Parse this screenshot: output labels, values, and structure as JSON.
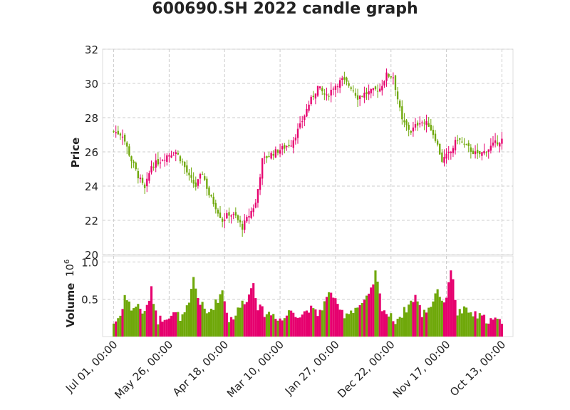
{
  "chart_data": {
    "type": "candlestick",
    "title": "600690.SH 2022 candle graph",
    "up_color": "#e6006e",
    "down_color": "#6fa80a",
    "price_panel": {
      "ylabel": "Price",
      "ylim": [
        20,
        32
      ],
      "yticks": [
        "20",
        "22",
        "24",
        "26",
        "28",
        "30",
        "32"
      ],
      "grid": true
    },
    "volume_panel": {
      "ylabel": "Volume",
      "ylim": [
        0,
        1.0
      ],
      "yticks": [
        "0.5",
        "1.0"
      ],
      "exponent_label": "10",
      "exponent_power": "6",
      "grid": true
    },
    "x_order": "descending",
    "x_tick_labels": [
      "Jul 01, 00:00",
      "May 26, 00:00",
      "Apr 18, 00:00",
      "Mar 10, 00:00",
      "Jan 27, 00:00",
      "Dec 22, 00:00",
      "Nov 17, 00:00",
      "Oct 13, 00:00"
    ],
    "x_tick_positions": [
      0,
      25,
      50,
      75,
      100,
      125,
      150,
      175
    ],
    "x_tick_rotation": 45,
    "price_close_anchors": [
      [
        0,
        27.2
      ],
      [
        4,
        27.0
      ],
      [
        8,
        25.5
      ],
      [
        11,
        24.6
      ],
      [
        14,
        23.8
      ],
      [
        17,
        25.2
      ],
      [
        20,
        25.4
      ],
      [
        24,
        25.8
      ],
      [
        28,
        26.0
      ],
      [
        31,
        25.4
      ],
      [
        34,
        24.5
      ],
      [
        37,
        24.0
      ],
      [
        40,
        24.8
      ],
      [
        43,
        23.5
      ],
      [
        46,
        22.8
      ],
      [
        49,
        22.0
      ],
      [
        52,
        22.4
      ],
      [
        55,
        22.2
      ],
      [
        58,
        21.6
      ],
      [
        61,
        22.3
      ],
      [
        64,
        23.0
      ],
      [
        67,
        25.5
      ],
      [
        70,
        25.8
      ],
      [
        73,
        26.0
      ],
      [
        76,
        26.2
      ],
      [
        80,
        26.5
      ],
      [
        84,
        27.5
      ],
      [
        88,
        28.8
      ],
      [
        92,
        29.8
      ],
      [
        96,
        29.2
      ],
      [
        99,
        29.8
      ],
      [
        103,
        30.2
      ],
      [
        107,
        29.8
      ],
      [
        110,
        29.2
      ],
      [
        113,
        29.4
      ],
      [
        116,
        29.5
      ],
      [
        120,
        29.7
      ],
      [
        123,
        30.5
      ],
      [
        126,
        30.4
      ],
      [
        130,
        27.8
      ],
      [
        134,
        27.2
      ],
      [
        138,
        27.8
      ],
      [
        142,
        27.6
      ],
      [
        145,
        26.8
      ],
      [
        148,
        25.5
      ],
      [
        152,
        26.0
      ],
      [
        155,
        26.8
      ],
      [
        158,
        26.4
      ],
      [
        161,
        26.1
      ],
      [
        164,
        25.8
      ],
      [
        167,
        26.0
      ],
      [
        170,
        26.3
      ],
      [
        173,
        26.6
      ],
      [
        175,
        26.7
      ]
    ],
    "volume_anchors": [
      [
        0,
        0.18
      ],
      [
        3,
        0.28
      ],
      [
        5,
        0.55
      ],
      [
        8,
        0.38
      ],
      [
        11,
        0.42
      ],
      [
        14,
        0.3
      ],
      [
        17,
        0.62
      ],
      [
        20,
        0.22
      ],
      [
        24,
        0.28
      ],
      [
        28,
        0.3
      ],
      [
        31,
        0.25
      ],
      [
        34,
        0.42
      ],
      [
        36,
        0.78
      ],
      [
        38,
        0.52
      ],
      [
        42,
        0.3
      ],
      [
        46,
        0.45
      ],
      [
        49,
        0.62
      ],
      [
        52,
        0.22
      ],
      [
        55,
        0.3
      ],
      [
        58,
        0.45
      ],
      [
        61,
        0.55
      ],
      [
        63,
        0.75
      ],
      [
        65,
        0.4
      ],
      [
        68,
        0.32
      ],
      [
        72,
        0.3
      ],
      [
        76,
        0.22
      ],
      [
        80,
        0.36
      ],
      [
        84,
        0.28
      ],
      [
        88,
        0.38
      ],
      [
        92,
        0.3
      ],
      [
        95,
        0.45
      ],
      [
        98,
        0.62
      ],
      [
        101,
        0.38
      ],
      [
        104,
        0.3
      ],
      [
        107,
        0.35
      ],
      [
        110,
        0.4
      ],
      [
        113,
        0.45
      ],
      [
        116,
        0.6
      ],
      [
        118,
        0.85
      ],
      [
        121,
        0.4
      ],
      [
        124,
        0.28
      ],
      [
        127,
        0.22
      ],
      [
        130,
        0.3
      ],
      [
        133,
        0.42
      ],
      [
        136,
        0.55
      ],
      [
        139,
        0.3
      ],
      [
        143,
        0.42
      ],
      [
        146,
        0.65
      ],
      [
        149,
        0.4
      ],
      [
        152,
        0.92
      ],
      [
        155,
        0.32
      ],
      [
        158,
        0.35
      ],
      [
        162,
        0.3
      ],
      [
        166,
        0.25
      ],
      [
        170,
        0.22
      ],
      [
        175,
        0.2
      ]
    ]
  }
}
